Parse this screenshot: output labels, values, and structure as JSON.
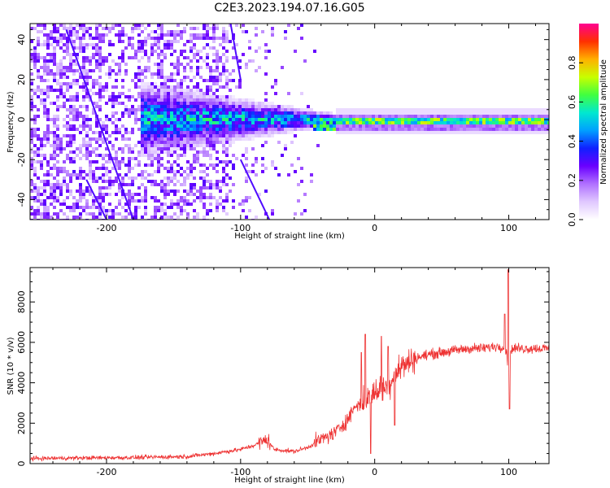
{
  "title": "C2E3.2023.194.07.16.G05",
  "chart_data": [
    {
      "type": "heatmap",
      "xlabel": "Height of straight line (km)",
      "ylabel": "Frequency (Hz)",
      "xlim": [
        -257,
        130
      ],
      "ylim": [
        -50,
        48
      ],
      "xticks": [
        -200,
        -100,
        0,
        100
      ],
      "xtick_labels": [
        "-200",
        "-100",
        "0",
        "100"
      ],
      "yticks": [
        -40,
        -20,
        0,
        20,
        40
      ],
      "ytick_labels": [
        "-40",
        "-20",
        "0",
        "20",
        "40"
      ],
      "colorbar": {
        "label": "Normalized spectral amplitude",
        "range": [
          0,
          1
        ],
        "ticks": [
          0.0,
          0.2,
          0.4,
          0.6,
          0.8
        ],
        "tick_labels": [
          "0.0",
          "0.2",
          "0.4",
          "0.6",
          "0.8"
        ],
        "colormap": [
          "#ffffff",
          "#e0c8ff",
          "#b070ff",
          "#6a00ff",
          "#1020ff",
          "#00a0ff",
          "#00e8d0",
          "#40ff40",
          "#c8ff00",
          "#ffb000",
          "#ff3000",
          "#ff0090"
        ]
      },
      "features": [
        {
          "name": "noise scatter",
          "x_range": [
            -257,
            -110
          ],
          "freq_range": [
            -50,
            48
          ],
          "amplitude": 0.1
        },
        {
          "name": "converging band",
          "x_range": [
            -175,
            -30
          ],
          "center_freq": 0,
          "amplitude": 0.35
        },
        {
          "name": "narrow line",
          "x_range": [
            -30,
            130
          ],
          "center_freq": -1,
          "amplitude": 0.9
        }
      ],
      "grid": false
    },
    {
      "type": "line",
      "xlabel": "Height of straight line (km)",
      "ylabel": "SNR (10 * v/v)",
      "xlim": [
        -257,
        130
      ],
      "ylim": [
        0,
        9700
      ],
      "xticks": [
        -200,
        -100,
        0,
        100
      ],
      "xtick_labels": [
        "-200",
        "-100",
        "0",
        "100"
      ],
      "yticks": [
        0,
        2000,
        4000,
        6000,
        8000
      ],
      "ytick_labels": [
        "0",
        "2000",
        "4000",
        "6000",
        "8000"
      ],
      "color": "#ee3333",
      "envelope": {
        "x": [
          -257,
          -220,
          -180,
          -140,
          -120,
          -100,
          -90,
          -80,
          -75,
          -60,
          -50,
          -40,
          -30,
          -20,
          -15,
          -10,
          -5,
          0,
          5,
          10,
          15,
          20,
          25,
          30,
          40,
          50,
          60,
          70,
          80,
          90,
          95,
          98,
          100,
          102,
          105,
          110,
          120,
          130
        ],
        "y": [
          250,
          280,
          300,
          350,
          500,
          700,
          900,
          1200,
          700,
          600,
          800,
          1200,
          1500,
          2200,
          2800,
          3000,
          3200,
          3500,
          3800,
          3800,
          4500,
          4800,
          5000,
          5200,
          5400,
          5500,
          5600,
          5700,
          5700,
          5800,
          5800,
          5600,
          4500,
          5700,
          5700,
          5700,
          5700,
          5700
        ]
      },
      "spikes": [
        {
          "x": -10,
          "y": 5500
        },
        {
          "x": -7,
          "y": 6400
        },
        {
          "x": -3,
          "y": 500
        },
        {
          "x": 5,
          "y": 6300
        },
        {
          "x": 10,
          "y": 5800
        },
        {
          "x": 15,
          "y": 1900
        },
        {
          "x": 97,
          "y": 7400
        },
        {
          "x": 99.5,
          "y": 9600
        },
        {
          "x": 100.5,
          "y": 2700
        }
      ],
      "grid": false
    }
  ]
}
